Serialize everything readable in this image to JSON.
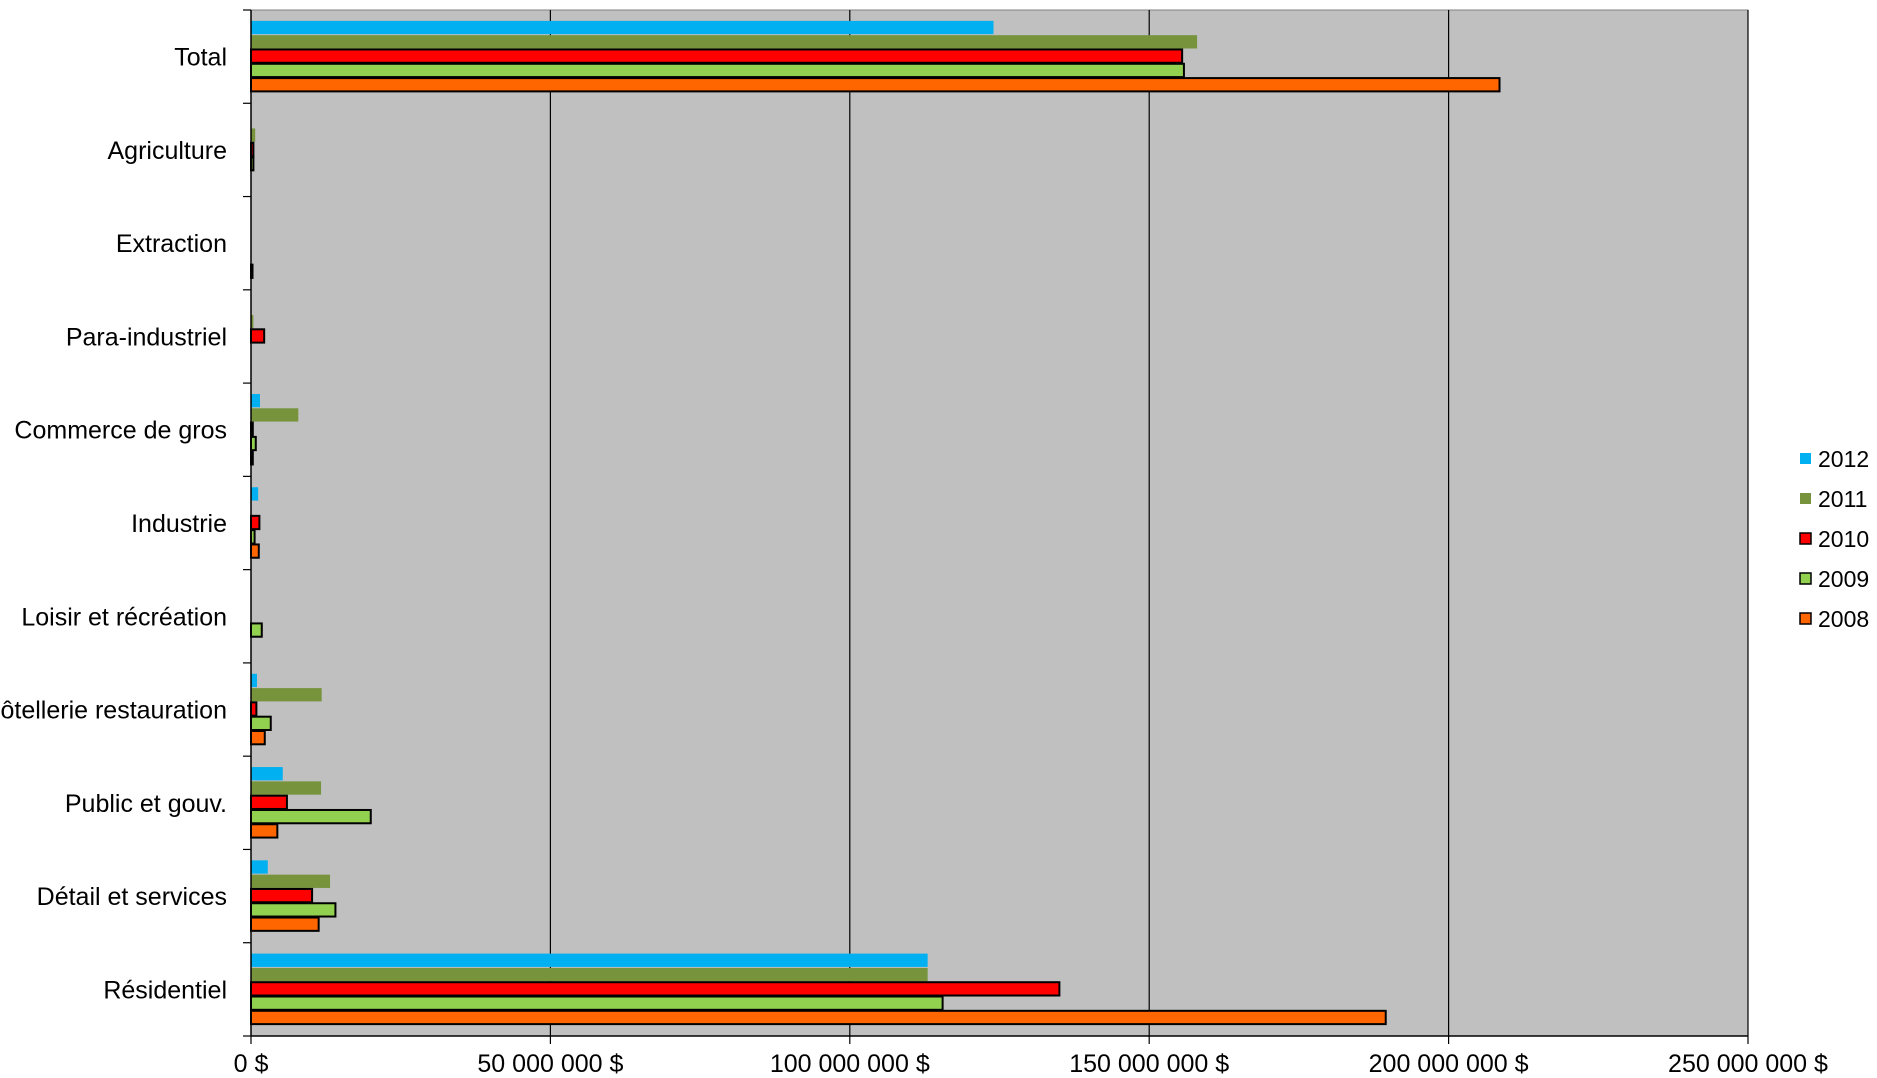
{
  "chart_data": {
    "type": "bar",
    "orientation": "horizontal",
    "title": "",
    "xlabel": "",
    "ylabel": "",
    "xlim": [
      0,
      250000000
    ],
    "x_ticks": [
      0,
      50000000,
      100000000,
      150000000,
      200000000,
      250000000
    ],
    "x_tick_labels": [
      "0 $",
      "50 000 000 $",
      "100 000 000 $",
      "150 000 000 $",
      "200 000 000 $",
      "250 000 000 $"
    ],
    "grid": "vertical major gridlines",
    "plot_background": "#C0C0C0",
    "legend_position": "right",
    "categories_top_to_bottom": [
      "Total",
      "Agriculture",
      "Extraction",
      "Para-industriel",
      "Commerce de gros",
      "Industrie",
      "Loisir et récréation",
      "Hôtellerie restauration",
      "Public et gouv.",
      "Détail et services",
      "Résidentiel"
    ],
    "series": [
      {
        "name": "2012",
        "color": "#00B0F0",
        "outlined": false,
        "values": [
          124000000,
          0,
          0,
          0,
          1500000,
          1200000,
          0,
          1000000,
          5300000,
          2800000,
          113000000
        ]
      },
      {
        "name": "2011",
        "color": "#77933C",
        "outlined": false,
        "values": [
          158000000,
          700000,
          0,
          400000,
          7900000,
          0,
          0,
          11800000,
          11700000,
          13200000,
          113000000
        ]
      },
      {
        "name": "2010",
        "color": "#FF0000",
        "outlined": true,
        "values": [
          155500000,
          400000,
          0,
          2200000,
          300000,
          1400000,
          0,
          900000,
          6000000,
          10200000,
          135000000
        ]
      },
      {
        "name": "2009",
        "color": "#92D050",
        "outlined": true,
        "values": [
          155800000,
          400000,
          0,
          0,
          800000,
          600000,
          1800000,
          3300000,
          20000000,
          14100000,
          115500000
        ]
      },
      {
        "name": "2008",
        "color": "#FF6600",
        "outlined": true,
        "values": [
          208500000,
          0,
          200000,
          0,
          300000,
          1300000,
          0,
          2300000,
          4400000,
          11300000,
          189500000
        ]
      }
    ],
    "legend_order": [
      "2012",
      "2011",
      "2010",
      "2009",
      "2008"
    ]
  }
}
